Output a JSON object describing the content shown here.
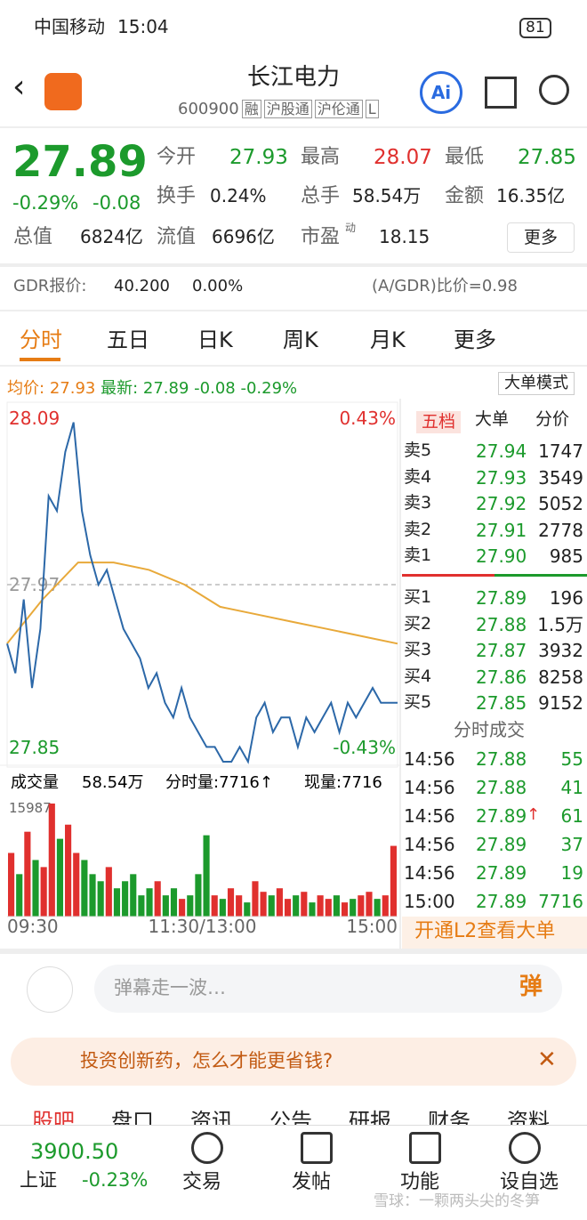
{
  "status": {
    "carrier": "中国移动",
    "time": "15:04",
    "battery": "81"
  },
  "header": {
    "title": "长江电力",
    "code": "600900",
    "tags": [
      "融",
      "沪股通",
      "沪伦通",
      "L"
    ]
  },
  "quote": {
    "price": "27.89",
    "change_pct": "-0.29%",
    "change": "-0.08",
    "fields": [
      {
        "label": "今开",
        "value": "27.93"
      },
      {
        "label": "最高",
        "value": "28.07"
      },
      {
        "label": "最低",
        "value": "27.85"
      },
      {
        "label": "换手",
        "value": "0.24%"
      },
      {
        "label": "总手",
        "value": "58.54万"
      },
      {
        "label": "金额",
        "value": "16.35亿"
      },
      {
        "label": "总值",
        "value": "6824亿"
      },
      {
        "label": "流值",
        "value": "6696亿"
      },
      {
        "label": "市盈",
        "sup": "动",
        "value": "18.15"
      }
    ],
    "more": "更多"
  },
  "gdr": {
    "label": "GDR报价:",
    "price": "40.200",
    "pct": "0.00%",
    "ratio": "(A/GDR)比价=0.98"
  },
  "tabs": [
    "分时",
    "五日",
    "日K",
    "周K",
    "月K",
    "更多"
  ],
  "infobar": {
    "avg_label": "均价:",
    "avg": "27.93",
    "last_label": "最新:",
    "last": "27.89",
    "change": "-0.08",
    "pct": "-0.29%",
    "mode": "大单模式"
  },
  "chart": {
    "ylim": [
      27.85,
      28.09
    ],
    "yticks": [
      28.09,
      27.97,
      27.85
    ],
    "pct_top": "0.43%",
    "pct_bottom": "-0.43%",
    "price": [
      27.93,
      27.91,
      27.96,
      27.9,
      27.94,
      28.03,
      28.02,
      28.06,
      28.08,
      28.02,
      27.99,
      27.97,
      27.98,
      27.96,
      27.94,
      27.93,
      27.92,
      27.9,
      27.91,
      27.89,
      27.88,
      27.9,
      27.88,
      27.87,
      27.86,
      27.86,
      27.85,
      27.85,
      27.86,
      27.85,
      27.88,
      27.89,
      27.87,
      27.88,
      27.88,
      27.86,
      27.88,
      27.87,
      27.88,
      27.89,
      27.87,
      27.89,
      27.88,
      27.89,
      27.9,
      27.89,
      27.89,
      27.89
    ],
    "avg": [
      27.93,
      27.96,
      27.985,
      27.985,
      27.98,
      27.97,
      27.955,
      27.95,
      27.945,
      27.94,
      27.935,
      27.93
    ],
    "volume_label": "成交量",
    "volume_total": "58.54万",
    "minute_vol": "分时量:7716↑",
    "now_vol": "现量:7716",
    "vol_ylim": [
      0,
      15987
    ],
    "volume": [
      9000,
      6000,
      12000,
      8000,
      7000,
      15987,
      11000,
      13000,
      9000,
      8000,
      6000,
      5000,
      7000,
      4000,
      5000,
      6000,
      3000,
      4000,
      5000,
      3000,
      4000,
      2500,
      3000,
      6000,
      11500,
      3000,
      2500,
      4000,
      3000,
      2000,
      5000,
      3500,
      3000,
      4000,
      2500,
      3000,
      3500,
      2000,
      3000,
      2500,
      3000,
      2000,
      2500,
      3000,
      3500,
      2500,
      3000,
      10000
    ],
    "times": [
      "09:30",
      "11:30/13:00",
      "15:00"
    ]
  },
  "book": {
    "tabs": [
      "五档",
      "大单",
      "分价"
    ],
    "sell": [
      [
        "卖5",
        "27.94",
        "1747"
      ],
      [
        "卖4",
        "27.93",
        "3549"
      ],
      [
        "卖3",
        "27.92",
        "5052"
      ],
      [
        "卖2",
        "27.91",
        "2778"
      ],
      [
        "卖1",
        "27.90",
        "985"
      ]
    ],
    "buy": [
      [
        "买1",
        "27.89",
        "196"
      ],
      [
        "买2",
        "27.88",
        "1.5万"
      ],
      [
        "买3",
        "27.87",
        "3932"
      ],
      [
        "买4",
        "27.86",
        "8258"
      ],
      [
        "买5",
        "27.85",
        "9152"
      ]
    ],
    "trades_title": "分时成交",
    "trades": [
      [
        "14:56",
        "27.88",
        "55"
      ],
      [
        "14:56",
        "27.88",
        "41"
      ],
      [
        "14:56",
        "27.89",
        "61"
      ],
      [
        "14:56",
        "27.89",
        "37"
      ],
      [
        "14:56",
        "27.89",
        "19"
      ],
      [
        "15:00",
        "27.89",
        "7716"
      ]
    ],
    "flag": "↑",
    "l2": "开通L2查看大单"
  },
  "danmu": {
    "placeholder": "弹幕走一波…",
    "button": "弹"
  },
  "ad": "投资创新药，怎么才能更省钱?",
  "subtabs": [
    "股吧",
    "盘口",
    "资讯",
    "公告",
    "研报",
    "财务",
    "资料"
  ],
  "nav": {
    "index_value": "3900.50",
    "index_name": "上证",
    "index_pct": "-0.23%",
    "items": [
      "交易",
      "发帖",
      "功能",
      "设自选"
    ]
  },
  "watermark": "雪球：一颗两头尖的冬笋"
}
